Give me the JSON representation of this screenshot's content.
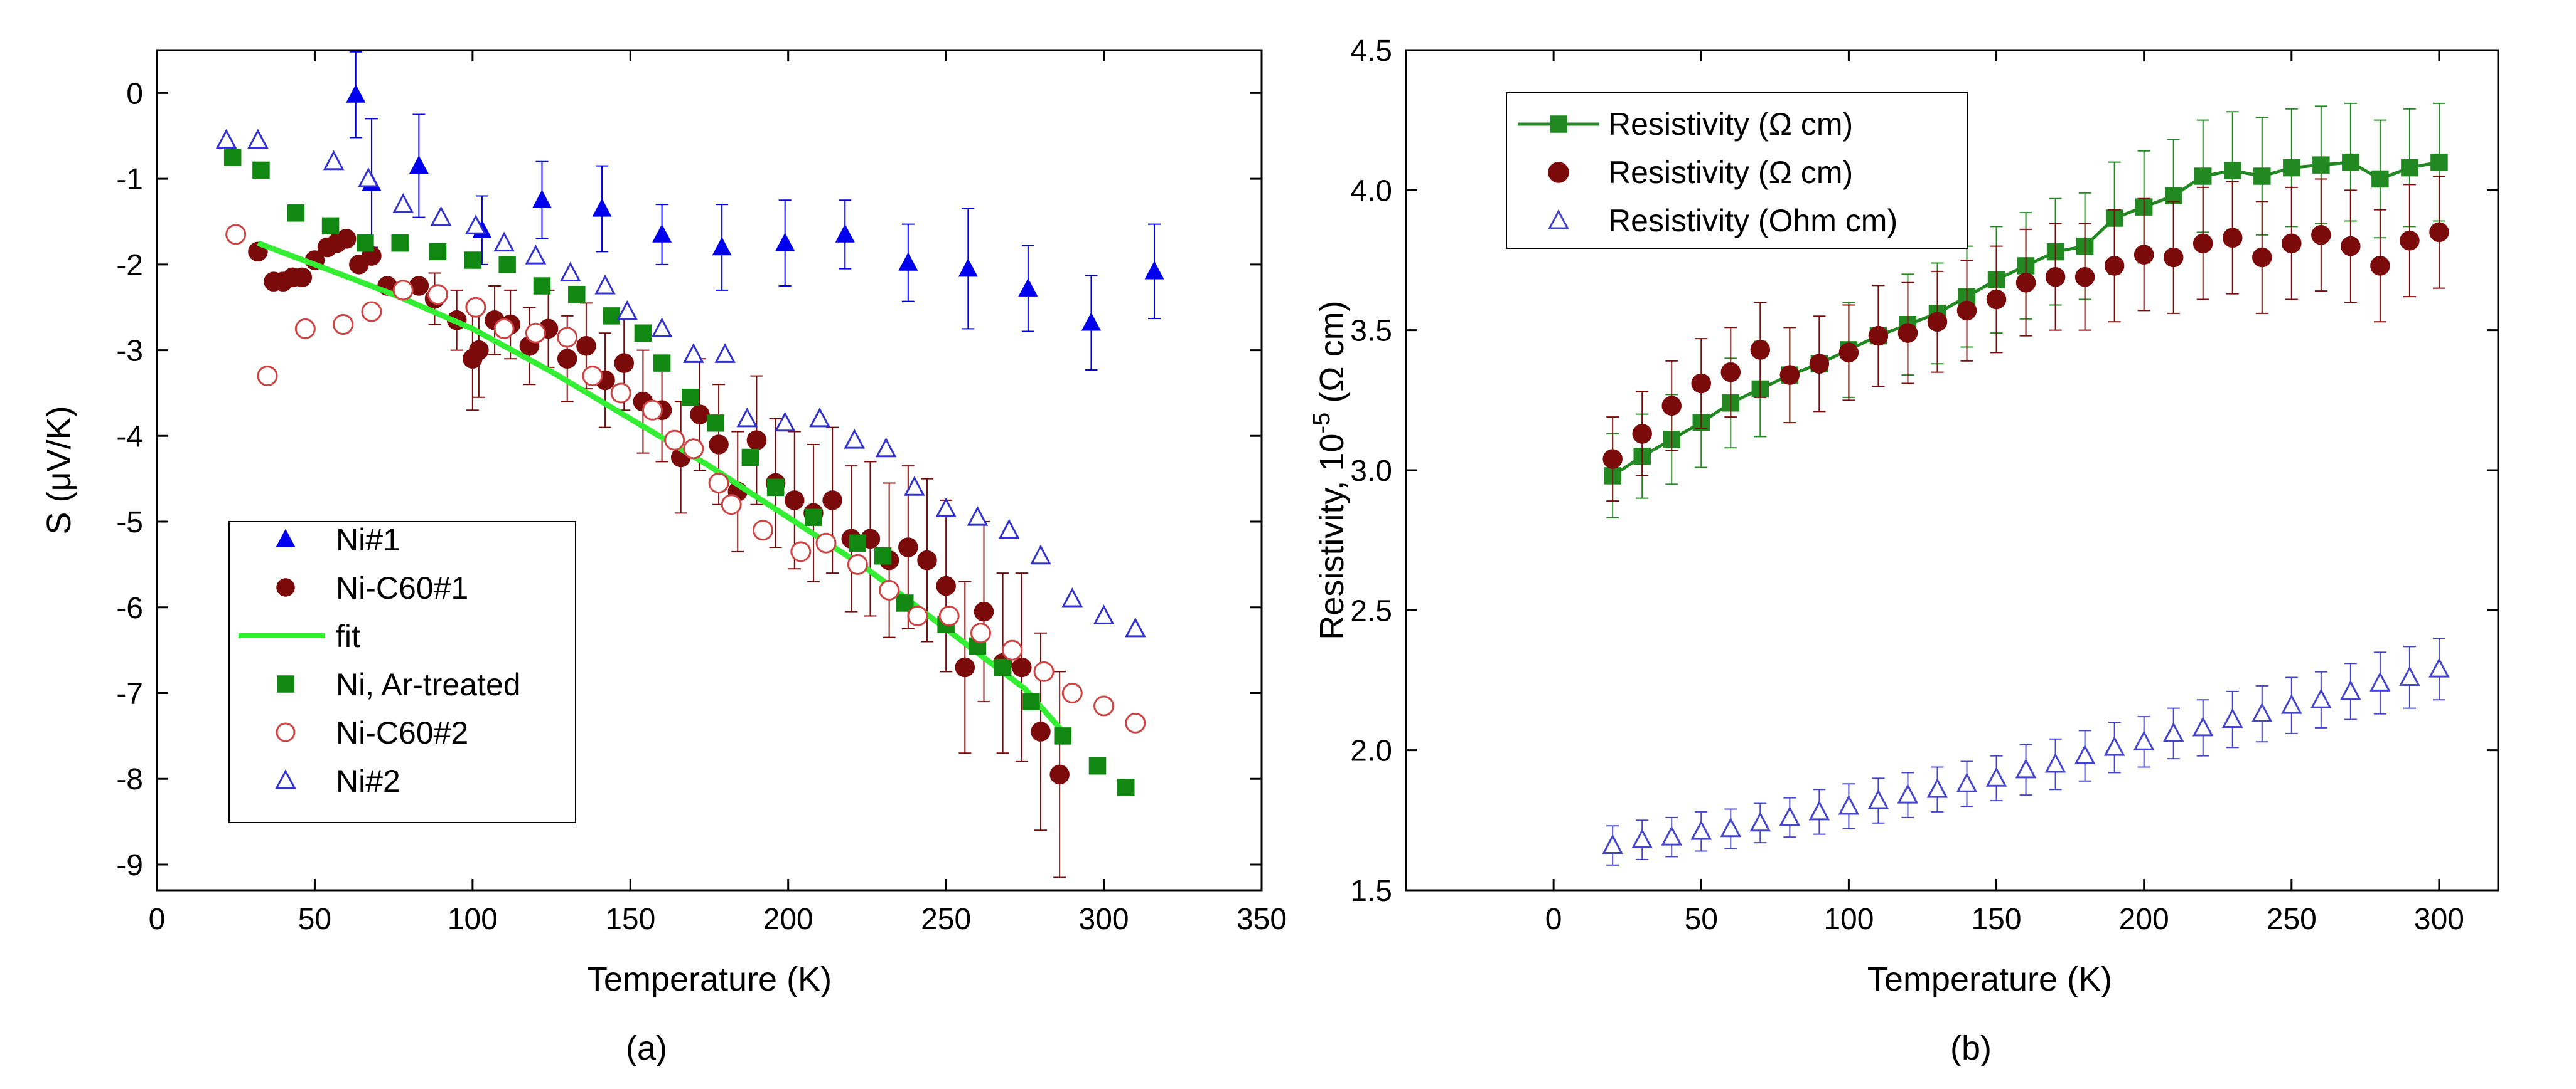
{
  "chart_data": [
    {
      "type": "scatter",
      "panel_label": "(a)",
      "title": "",
      "xlabel": "Temperature (K)",
      "ylabel": "S (μV/K)",
      "xlim": [
        0,
        350
      ],
      "ylim": [
        -9.3,
        0.5
      ],
      "xticks": [
        0,
        50,
        100,
        150,
        200,
        250,
        300,
        350
      ],
      "yticks": [
        0,
        -1,
        -2,
        -3,
        -4,
        -5,
        -6,
        -7,
        -8,
        -9
      ],
      "grid": false,
      "legend_position": "bottom-left",
      "legend_order": [
        "Ni#1",
        "Ni-C60#1",
        "fit",
        "Ni, Ar-treated",
        "Ni-C60#2",
        "Ni#2"
      ],
      "series": [
        {
          "name": "Ni#1",
          "marker": "triangle-up",
          "filled": true,
          "color": "#0000ee",
          "x": [
            63,
            68,
            83,
            103,
            122,
            141,
            160,
            179,
            199,
            218,
            238,
            257,
            276,
            296,
            316
          ],
          "y": [
            -0.02,
            -1.05,
            -0.85,
            -1.6,
            -1.25,
            -1.35,
            -1.65,
            -1.8,
            -1.75,
            -1.65,
            -1.98,
            -2.05,
            -2.28,
            -2.68,
            -2.08
          ],
          "err": [
            0.5,
            0.75,
            0.6,
            0.4,
            0.45,
            0.5,
            0.35,
            0.5,
            0.5,
            0.4,
            0.45,
            0.7,
            0.5,
            0.55,
            0.55
          ]
        },
        {
          "name": "Ni-C60#1",
          "marker": "circle",
          "filled": true,
          "color": "#7b0a0a",
          "x": [
            32,
            37,
            40,
            43,
            46,
            50,
            54,
            57,
            60,
            64,
            68,
            73,
            78,
            83,
            88,
            95,
            100,
            102,
            107,
            112,
            118,
            124,
            130,
            136,
            142,
            148,
            154,
            160,
            166,
            172,
            178,
            184,
            190,
            196,
            202,
            208,
            214,
            220,
            226,
            232,
            238,
            244,
            250,
            256,
            262,
            268,
            274,
            280,
            286
          ],
          "y": [
            -1.85,
            -2.2,
            -2.2,
            -2.15,
            -2.15,
            -1.95,
            -1.8,
            -1.75,
            -1.7,
            -2.0,
            -1.9,
            -2.25,
            -2.3,
            -2.25,
            -2.4,
            -2.65,
            -3.1,
            -3.0,
            -2.65,
            -2.7,
            -2.95,
            -2.75,
            -3.1,
            -2.95,
            -3.35,
            -3.15,
            -3.6,
            -3.7,
            -4.25,
            -3.75,
            -4.1,
            -4.65,
            -4.05,
            -4.55,
            -4.75,
            -4.9,
            -4.75,
            -5.2,
            -5.2,
            -5.45,
            -5.3,
            -5.45,
            -5.75,
            -6.7,
            -6.05,
            -6.65,
            -6.7,
            -7.45,
            -7.95
          ],
          "err": [
            0.0,
            0.0,
            0.0,
            0.0,
            0.0,
            0.0,
            0.0,
            0.0,
            0.0,
            0.0,
            0.0,
            0.0,
            0.0,
            0.0,
            0.3,
            0.35,
            0.6,
            0.55,
            0.4,
            0.4,
            0.45,
            0.45,
            0.5,
            0.5,
            0.55,
            0.55,
            0.6,
            0.6,
            0.65,
            0.65,
            0.7,
            0.7,
            0.75,
            0.75,
            0.8,
            0.8,
            0.85,
            0.85,
            0.9,
            0.9,
            0.95,
            0.95,
            1.0,
            1.0,
            1.05,
            1.05,
            1.1,
            1.15,
            1.2
          ]
        },
        {
          "name": "fit",
          "line": true,
          "color": "#33ee33",
          "x": [
            32,
            50,
            75,
            100,
            125,
            150,
            175,
            200,
            225,
            250,
            275,
            287
          ],
          "y": [
            -1.75,
            -2.0,
            -2.35,
            -2.75,
            -3.25,
            -3.8,
            -4.35,
            -4.95,
            -5.55,
            -6.25,
            -6.95,
            -7.45
          ]
        },
        {
          "name": "Ni, Ar-treated",
          "marker": "square",
          "filled": true,
          "color": "#118811",
          "x": [
            24,
            33,
            44,
            55,
            66,
            77,
            89,
            100,
            111,
            122,
            133,
            144,
            154,
            160,
            169,
            177,
            188,
            196,
            208,
            222,
            230,
            237,
            250,
            260,
            268,
            277,
            287,
            298,
            307
          ],
          "y": [
            -0.75,
            -0.9,
            -1.4,
            -1.55,
            -1.75,
            -1.75,
            -1.85,
            -1.95,
            -2.0,
            -2.25,
            -2.35,
            -2.6,
            -2.8,
            -3.15,
            -3.55,
            -3.85,
            -4.25,
            -4.6,
            -4.95,
            -5.25,
            -5.4,
            -5.95,
            -6.2,
            -6.45,
            -6.7,
            -7.1,
            -7.5,
            -7.85,
            -8.1
          ],
          "err": []
        },
        {
          "name": "Ni-C60#2",
          "marker": "circle",
          "filled": false,
          "color": "#cc4444",
          "x": [
            25,
            35,
            47,
            59,
            68,
            78,
            89,
            101,
            110,
            120,
            130,
            138,
            147,
            157,
            164,
            170,
            178,
            182,
            192,
            204,
            212,
            222,
            232,
            241,
            251,
            261,
            271,
            281,
            290,
            300,
            310
          ],
          "y": [
            -1.65,
            -3.3,
            -2.75,
            -2.7,
            -2.55,
            -2.3,
            -2.35,
            -2.5,
            -2.75,
            -2.8,
            -2.85,
            -3.3,
            -3.5,
            -3.7,
            -4.05,
            -4.15,
            -4.55,
            -4.8,
            -5.1,
            -5.35,
            -5.25,
            -5.5,
            -5.8,
            -6.1,
            -6.1,
            -6.3,
            -6.5,
            -6.75,
            -7.0,
            -7.15,
            -7.35
          ],
          "err": []
        },
        {
          "name": "Ni#2",
          "marker": "triangle-up",
          "filled": false,
          "color": "#3333cc",
          "x": [
            22,
            32,
            56,
            67,
            78,
            90,
            101,
            110,
            120,
            131,
            142,
            149,
            160,
            170,
            180,
            187,
            199,
            210,
            221,
            231,
            240,
            250,
            260,
            270,
            280,
            290,
            300,
            310
          ],
          "y": [
            -0.55,
            -0.55,
            -0.8,
            -1.0,
            -1.3,
            -1.45,
            -1.55,
            -1.75,
            -1.9,
            -2.1,
            -2.25,
            -2.55,
            -2.75,
            -3.05,
            -3.05,
            -3.8,
            -3.85,
            -3.8,
            -4.05,
            -4.15,
            -4.6,
            -4.85,
            -4.95,
            -5.1,
            -5.4,
            -5.9,
            -6.1,
            -6.25
          ],
          "err": []
        }
      ]
    },
    {
      "type": "scatter",
      "panel_label": "(b)",
      "title": "",
      "xlabel": "Temperature (K)",
      "ylabel_main": "Resistivity, 10",
      "ylabel_exp": "-5",
      "ylabel_unit": " (Ω cm)",
      "xlim": [
        -50,
        320
      ],
      "ylim": [
        1.5,
        4.5
      ],
      "xticks": [
        0,
        50,
        100,
        150,
        200,
        250,
        300
      ],
      "yticks": [
        1.5,
        2.0,
        2.5,
        3.0,
        3.5,
        4.0,
        4.5
      ],
      "ytick_labels": [
        "1.5",
        "2.0",
        "2.5",
        "3.0",
        "3.5",
        "4.0",
        "4.5"
      ],
      "grid": false,
      "legend_position": "top-left",
      "series": [
        {
          "name": "Resistivity (Ω cm)",
          "marker": "square",
          "filled": true,
          "line": true,
          "color": "#228822",
          "x": [
            20,
            30,
            40,
            50,
            60,
            70,
            80,
            90,
            100,
            110,
            120,
            130,
            140,
            150,
            160,
            170,
            180,
            190,
            200,
            210,
            220,
            230,
            240,
            250,
            260,
            270,
            280,
            290,
            300
          ],
          "y": [
            2.98,
            3.05,
            3.11,
            3.17,
            3.24,
            3.29,
            3.34,
            3.38,
            3.43,
            3.48,
            3.52,
            3.56,
            3.62,
            3.68,
            3.73,
            3.78,
            3.8,
            3.9,
            3.94,
            3.98,
            4.05,
            4.07,
            4.05,
            4.08,
            4.09,
            4.1,
            4.04,
            4.08,
            4.1
          ],
          "err": [
            0.15,
            0.15,
            0.16,
            0.16,
            0.16,
            0.17,
            0.17,
            0.17,
            0.17,
            0.18,
            0.18,
            0.18,
            0.18,
            0.19,
            0.19,
            0.19,
            0.19,
            0.2,
            0.2,
            0.2,
            0.2,
            0.21,
            0.21,
            0.21,
            0.21,
            0.21,
            0.21,
            0.21,
            0.21
          ]
        },
        {
          "name": "Resistivity (Ω cm)",
          "marker": "circle",
          "filled": true,
          "color": "#7b0a0a",
          "x": [
            20,
            30,
            40,
            50,
            60,
            70,
            80,
            90,
            100,
            110,
            120,
            130,
            140,
            150,
            160,
            170,
            180,
            190,
            200,
            210,
            220,
            230,
            240,
            250,
            260,
            270,
            280,
            290,
            300
          ],
          "y": [
            3.04,
            3.13,
            3.23,
            3.31,
            3.35,
            3.43,
            3.34,
            3.38,
            3.42,
            3.48,
            3.49,
            3.53,
            3.57,
            3.61,
            3.67,
            3.69,
            3.69,
            3.73,
            3.77,
            3.76,
            3.81,
            3.83,
            3.76,
            3.81,
            3.84,
            3.8,
            3.73,
            3.82,
            3.85
          ],
          "err": [
            0.15,
            0.15,
            0.16,
            0.16,
            0.16,
            0.17,
            0.17,
            0.17,
            0.17,
            0.18,
            0.18,
            0.18,
            0.18,
            0.19,
            0.19,
            0.19,
            0.19,
            0.2,
            0.2,
            0.2,
            0.2,
            0.2,
            0.2,
            0.2,
            0.2,
            0.2,
            0.2,
            0.2,
            0.2
          ]
        },
        {
          "name": "Resistivity (Ohm cm)",
          "marker": "triangle-up",
          "filled": false,
          "color": "#4444cc",
          "x": [
            20,
            30,
            40,
            50,
            60,
            70,
            80,
            90,
            100,
            110,
            120,
            130,
            140,
            150,
            160,
            170,
            180,
            190,
            200,
            210,
            220,
            230,
            240,
            250,
            260,
            270,
            280,
            290,
            300
          ],
          "y": [
            1.66,
            1.68,
            1.69,
            1.71,
            1.72,
            1.74,
            1.76,
            1.78,
            1.8,
            1.82,
            1.84,
            1.86,
            1.88,
            1.9,
            1.93,
            1.95,
            1.98,
            2.01,
            2.03,
            2.06,
            2.08,
            2.11,
            2.13,
            2.16,
            2.18,
            2.21,
            2.24,
            2.26,
            2.29
          ],
          "err": [
            0.07,
            0.07,
            0.07,
            0.07,
            0.07,
            0.07,
            0.07,
            0.08,
            0.08,
            0.08,
            0.08,
            0.08,
            0.08,
            0.08,
            0.09,
            0.09,
            0.09,
            0.09,
            0.09,
            0.09,
            0.1,
            0.1,
            0.1,
            0.1,
            0.1,
            0.1,
            0.11,
            0.11,
            0.11
          ]
        }
      ]
    }
  ]
}
